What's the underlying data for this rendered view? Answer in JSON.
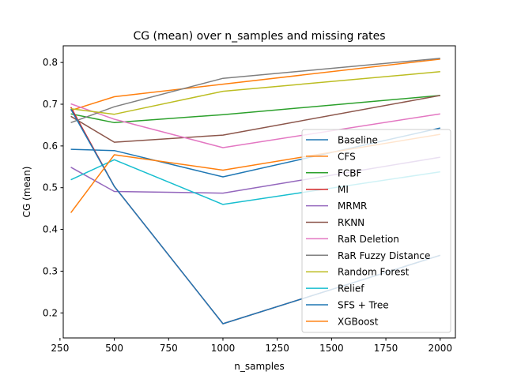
{
  "chart_data": {
    "type": "line",
    "title": "CG (mean) over n_samples and missing rates",
    "xlabel": "n_samples",
    "ylabel": "CG (mean)",
    "xlim": [
      265,
      2070
    ],
    "ylim": [
      0.14,
      0.84
    ],
    "xticks": [
      250,
      500,
      750,
      1000,
      1250,
      1500,
      1750,
      2000
    ],
    "xtick_labels": [
      "250",
      "500",
      "750",
      "1000",
      "1250",
      "1500",
      "1750",
      "2000"
    ],
    "yticks": [
      0.2,
      0.3,
      0.4,
      0.5,
      0.6,
      0.7,
      0.8
    ],
    "ytick_labels": [
      "0.2",
      "0.3",
      "0.4",
      "0.5",
      "0.6",
      "0.7",
      "0.8"
    ],
    "grid": false,
    "legend_position": "lower right",
    "x": [
      300,
      500,
      1000,
      2000
    ],
    "series": [
      {
        "name": "Baseline",
        "color": "#1f77b4",
        "values": [
          0.592,
          0.589,
          0.526,
          0.643
        ]
      },
      {
        "name": "CFS",
        "color": "#ff7f0e",
        "values": [
          0.685,
          0.718,
          0.748,
          0.808
        ]
      },
      {
        "name": "FCBF",
        "color": "#2ca02c",
        "values": [
          0.677,
          0.656,
          0.675,
          0.721
        ]
      },
      {
        "name": "MI",
        "color": "#d62728",
        "values": [
          0.693,
          0.503,
          0.174,
          0.338
        ]
      },
      {
        "name": "MRMR",
        "color": "#9467bd",
        "values": [
          0.549,
          0.491,
          0.487,
          0.573
        ]
      },
      {
        "name": "RKNN",
        "color": "#8c564b",
        "values": [
          0.671,
          0.609,
          0.626,
          0.721
        ]
      },
      {
        "name": "RaR Deletion",
        "color": "#e377c2",
        "values": [
          0.701,
          0.664,
          0.596,
          0.677
        ]
      },
      {
        "name": "RaR Fuzzy Distance",
        "color": "#7f7f7f",
        "values": [
          0.656,
          0.694,
          0.762,
          0.81
        ]
      },
      {
        "name": "Random Forest",
        "color": "#bcbd22",
        "values": [
          0.689,
          0.676,
          0.731,
          0.778
        ]
      },
      {
        "name": "Relief",
        "color": "#17becf",
        "values": [
          0.519,
          0.567,
          0.46,
          0.538
        ]
      },
      {
        "name": "SFS + Tree",
        "color": "#1f77b4",
        "values": [
          0.688,
          0.503,
          0.174,
          0.338
        ]
      },
      {
        "name": "XGBoost",
        "color": "#ff7f0e",
        "values": [
          0.44,
          0.579,
          0.542,
          0.628
        ]
      }
    ]
  }
}
